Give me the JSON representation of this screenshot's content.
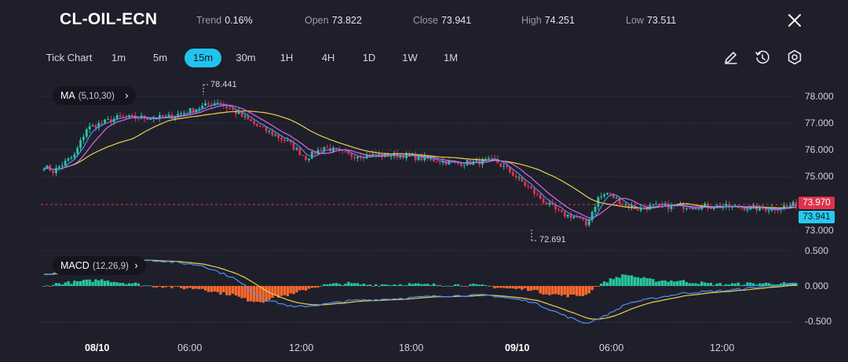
{
  "header": {
    "symbol": "CL-OIL-ECN",
    "trend_label": "Trend",
    "trend_value": "0.16%",
    "open_label": "Open",
    "open_value": "73.822",
    "close_label": "Close",
    "close_value": "73.941",
    "high_label": "High",
    "high_value": "74.251",
    "low_label": "Low",
    "low_value": "73.511"
  },
  "timeframes": [
    "Tick Chart",
    "1m",
    "5m",
    "15m",
    "30m",
    "1H",
    "4H",
    "1D",
    "1W",
    "1M"
  ],
  "active_timeframe": "15m",
  "toolbar_icons": [
    "pencil-icon",
    "history-icon",
    "settings-icon"
  ],
  "ma_indicator": {
    "label": "MA",
    "params": "(5,10,30)"
  },
  "macd_indicator": {
    "label": "MACD",
    "params": "(12,26,9)"
  },
  "annotations": {
    "high": "78.441",
    "low": "72.691"
  },
  "price_axis": [
    "78.000",
    "77.000",
    "76.000",
    "75.000",
    "73.000"
  ],
  "macd_axis": [
    "0.500",
    "0.000",
    "-0.500"
  ],
  "badges": {
    "current_price": "73.970",
    "close_price": "73.941"
  },
  "time_axis": [
    "08/10",
    "06:00",
    "12:00",
    "18:00",
    "09/10",
    "06:00",
    "12:00"
  ],
  "colors": {
    "up": "#26c6a0",
    "down": "#e0334a",
    "accent": "#21c4ee",
    "ma5": "#4f8ff7",
    "ma10": "#d86bdc",
    "ma30": "#e9d34a",
    "macd_line": "#4f8ff7",
    "signal_line": "#e9d34a",
    "hist_down": "#ff6a2c"
  },
  "chart_data": {
    "type": "candlestick",
    "price_axis_range": [
      72.6,
      78.6
    ],
    "price_anchors": [
      [
        0,
        75.4
      ],
      [
        3,
        75.2
      ],
      [
        10,
        75.8
      ],
      [
        14,
        76.8
      ],
      [
        24,
        77.2
      ],
      [
        40,
        77.2
      ],
      [
        49,
        77.5
      ],
      [
        57,
        77.8
      ],
      [
        63,
        77.4
      ],
      [
        70,
        76.9
      ],
      [
        80,
        76.3
      ],
      [
        86,
        75.7
      ],
      [
        92,
        76.1
      ],
      [
        100,
        75.8
      ],
      [
        118,
        75.8
      ],
      [
        135,
        75.5
      ],
      [
        148,
        75.6
      ],
      [
        153,
        75.2
      ],
      [
        159,
        74.6
      ],
      [
        165,
        74.0
      ],
      [
        170,
        73.6
      ],
      [
        175,
        73.5
      ],
      [
        178,
        73.2
      ],
      [
        182,
        74.2
      ],
      [
        185,
        74.4
      ],
      [
        190,
        74.0
      ],
      [
        195,
        73.8
      ],
      [
        200,
        73.9
      ],
      [
        220,
        73.9
      ],
      [
        238,
        73.8
      ],
      [
        247,
        73.97
      ]
    ],
    "macd_axis_range": [
      -0.5,
      0.5
    ],
    "macd_anchors": [
      [
        0,
        0.16
      ],
      [
        10,
        0.24
      ],
      [
        20,
        0.36
      ],
      [
        30,
        0.38
      ],
      [
        40,
        0.35
      ],
      [
        52,
        0.29
      ],
      [
        62,
        0.12
      ],
      [
        72,
        -0.18
      ],
      [
        82,
        -0.3
      ],
      [
        90,
        -0.27
      ],
      [
        100,
        -0.21
      ],
      [
        115,
        -0.18
      ],
      [
        130,
        -0.14
      ],
      [
        146,
        -0.13
      ],
      [
        160,
        -0.22
      ],
      [
        172,
        -0.44
      ],
      [
        178,
        -0.53
      ],
      [
        184,
        -0.43
      ],
      [
        192,
        -0.24
      ],
      [
        210,
        -0.1
      ],
      [
        225,
        -0.06
      ],
      [
        240,
        0.01
      ],
      [
        247,
        0.03
      ]
    ]
  }
}
